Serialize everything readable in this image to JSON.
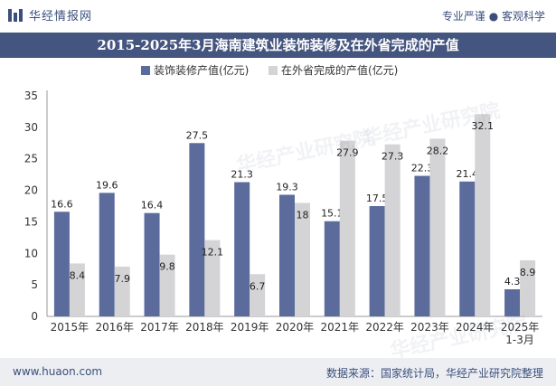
{
  "header": {
    "brand_name": "华经情报网",
    "tagline": "专业严谨 ● 客观科学"
  },
  "title": "2015-2025年3月海南建筑业装饰装修及在外省完成的产值",
  "footer": {
    "url": "www.huaon.com",
    "source": "数据来源：国家统计局，华经产业研究院整理"
  },
  "watermark": "华经产业研究院",
  "colors": {
    "series1": "#5a6b9c",
    "series2": "#d4d4d6",
    "title_bg": "#44557f",
    "text": "#3c4f7c"
  },
  "chart_data": {
    "type": "bar",
    "categories": [
      "2015年",
      "2016年",
      "2017年",
      "2018年",
      "2019年",
      "2020年",
      "2021年",
      "2022年",
      "2023年",
      "2024年",
      "2025年\n1-3月"
    ],
    "series": [
      {
        "name": "装饰装修产值(亿元)",
        "values": [
          16.6,
          19.6,
          16.4,
          27.5,
          21.3,
          19.3,
          15.1,
          17.5,
          22.3,
          21.4,
          4.3
        ]
      },
      {
        "name": "在外省完成的产值(亿元)",
        "values": [
          8.4,
          7.9,
          9.8,
          12.1,
          6.7,
          18,
          27.9,
          27.3,
          28.2,
          32.1,
          8.9
        ]
      }
    ],
    "ylim": [
      0,
      35
    ],
    "yticks": [
      0,
      5,
      10,
      15,
      20,
      25,
      30,
      35
    ],
    "legend_position": "top-center",
    "grid": false
  }
}
